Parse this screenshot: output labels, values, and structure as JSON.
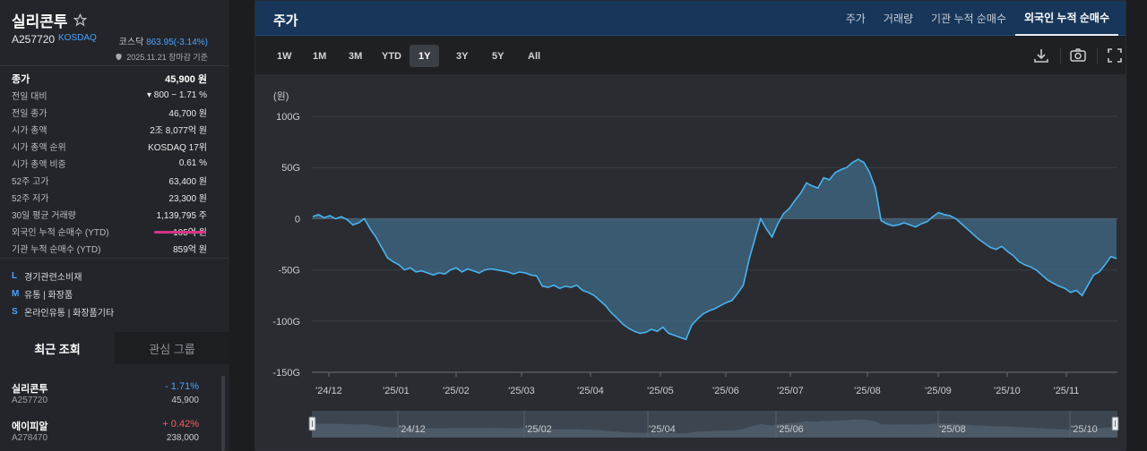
{
  "stock": {
    "name": "실리콘투",
    "code": "A257720",
    "market": "KOSDAQ",
    "index_label": "코스닥",
    "index_value": "863.95(-3.14%)",
    "as_of": "2025.11.21 장마감 기준"
  },
  "info_rows": [
    {
      "label": "종가",
      "value": "45,900 원"
    },
    {
      "label": "전일 대비",
      "value": "▾ 800 − 1.71 %"
    },
    {
      "label": "전일 종가",
      "value": "46,700 원"
    },
    {
      "label": "시가 총액",
      "value": "2조 8,077억 원"
    },
    {
      "label": "시가 총액 순위",
      "value": "KOSDAQ 17위"
    },
    {
      "label": "시가 총액 비중",
      "value": "0.61 %"
    },
    {
      "label": "52주 고가",
      "value": "63,400 원"
    },
    {
      "label": "52주 저가",
      "value": "23,300 원"
    },
    {
      "label": "30일 평균 거래량",
      "value": "1,139,795 주"
    },
    {
      "label": "외국인 누적 순매수 (YTD)",
      "value": "105억 원"
    },
    {
      "label": "기관 누적 순매수 (YTD)",
      "value": "859억 원"
    }
  ],
  "sectors": [
    {
      "tag": "L",
      "text": "경기관련소비재"
    },
    {
      "tag": "M",
      "text": "유통 | 화장품"
    },
    {
      "tag": "S",
      "text": "온라인유통 | 화장품기타"
    }
  ],
  "bottom_tabs": {
    "recent": "최근 조회",
    "watch": "관심 그룹"
  },
  "recent": [
    {
      "name": "실리콘투",
      "code": "A257720",
      "change": "- 1.71%",
      "price": "45,900",
      "dir": "down"
    },
    {
      "name": "에이피알",
      "code": "A278470",
      "change": "+ 0.42%",
      "price": "238,000",
      "dir": "up"
    }
  ],
  "main": {
    "title": "주가",
    "tabs": [
      "주가",
      "거래량",
      "기관 누적 순매수",
      "외국인 누적 순매수"
    ],
    "active_tab": 3,
    "ranges": [
      "1W",
      "1M",
      "3M",
      "YTD",
      "1Y",
      "3Y",
      "5Y",
      "All"
    ],
    "active_range": 4,
    "icons": [
      "download-icon",
      "camera-icon",
      "fullscreen-icon"
    ]
  },
  "chart_data": {
    "type": "area",
    "ylabel": "(원)",
    "y_ticks": [
      "100G",
      "50G",
      "0",
      "-50G",
      "-100G",
      "-150G"
    ],
    "ylim": [
      -150,
      100
    ],
    "y_unit": "G",
    "x_tick_labels": [
      "'24/12",
      "'25/01",
      "'25/02",
      "'25/03",
      "'25/04",
      "'25/05",
      "'25/06",
      "'25/07",
      "'25/08",
      "'25/09",
      "'25/10",
      "'25/11"
    ],
    "navigator_labels": [
      "'24/12",
      "'25/02",
      "'25/04",
      "'25/06",
      "'25/08",
      "'25/10"
    ],
    "series": [
      {
        "values": [
          2,
          4,
          1,
          3,
          0,
          2,
          -1,
          -6,
          -4,
          0,
          -10,
          -18,
          -28,
          -38,
          -42,
          -45,
          -50,
          -48,
          -52,
          -51,
          -53,
          -55,
          -53,
          -54,
          -50,
          -48,
          -52,
          -49,
          -51,
          -53,
          -50,
          -49,
          -50,
          -51,
          -52,
          -54,
          -52,
          -53,
          -55,
          -56,
          -66,
          -67,
          -65,
          -68,
          -66,
          -67,
          -65,
          -70,
          -72,
          -75,
          -80,
          -85,
          -92,
          -97,
          -103,
          -107,
          -110,
          -112,
          -111,
          -108,
          -110,
          -106,
          -112,
          -114,
          -116,
          -118,
          -104,
          -98,
          -93,
          -90,
          -88,
          -85,
          -82,
          -80,
          -73,
          -65,
          -40,
          -20,
          0,
          -10,
          -18,
          -5,
          5,
          10,
          18,
          25,
          35,
          32,
          30,
          40,
          38,
          45,
          48,
          50,
          55,
          58,
          55,
          45,
          30,
          -2,
          -5,
          -7,
          -6,
          -4,
          -6,
          -8,
          -5,
          -3,
          2,
          6,
          4,
          3,
          0,
          -5,
          -10,
          -15,
          -20,
          -24,
          -28,
          -30,
          -27,
          -32,
          -36,
          -42,
          -45,
          -47,
          -50,
          -55,
          -60,
          -63,
          -66,
          -68,
          -72,
          -70,
          -75,
          -65,
          -55,
          -52,
          -45,
          -37,
          -39
        ]
      }
    ],
    "grid": true
  }
}
